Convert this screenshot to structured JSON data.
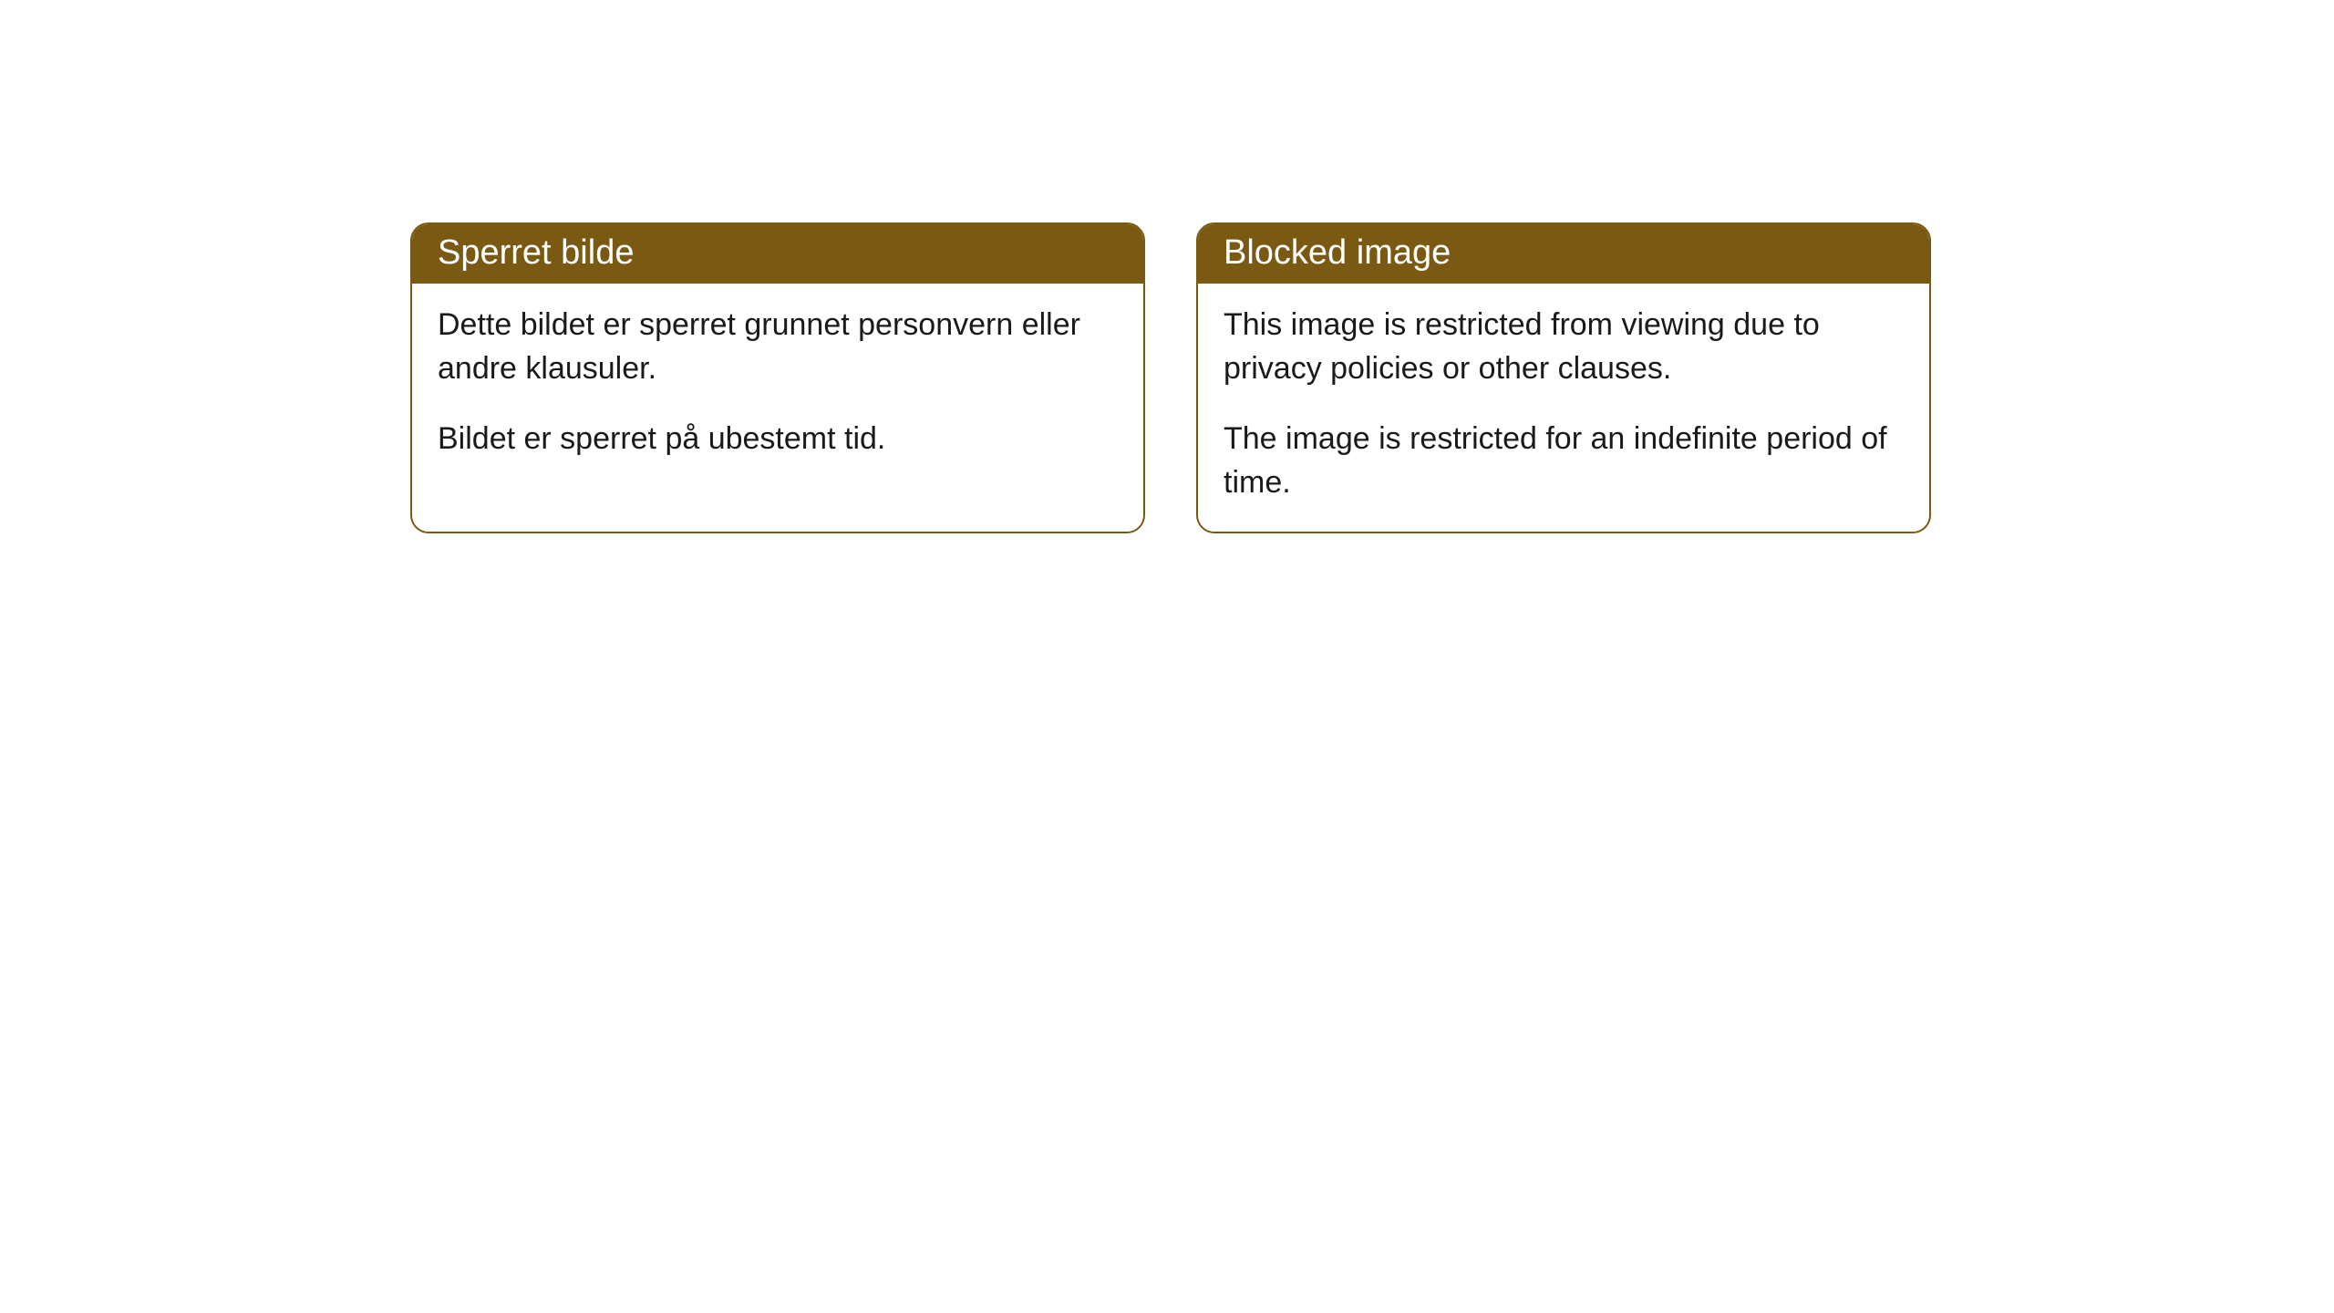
{
  "cards": [
    {
      "title": "Sperret bilde",
      "paragraph1": "Dette bildet er sperret grunnet personvern eller andre klausuler.",
      "paragraph2": "Bildet er sperret på ubestemt tid."
    },
    {
      "title": "Blocked image",
      "paragraph1": "This image is restricted from viewing due to privacy policies or other clauses.",
      "paragraph2": "The image is restricted for an indefinite period of time."
    }
  ],
  "styling": {
    "header_background": "#7a5a12",
    "header_text_color": "#ffffff",
    "card_border_color": "#7a5a12",
    "card_background": "#ffffff",
    "body_text_color": "#1a1a1a",
    "border_radius": 20,
    "header_fontsize": 38,
    "body_fontsize": 34
  }
}
